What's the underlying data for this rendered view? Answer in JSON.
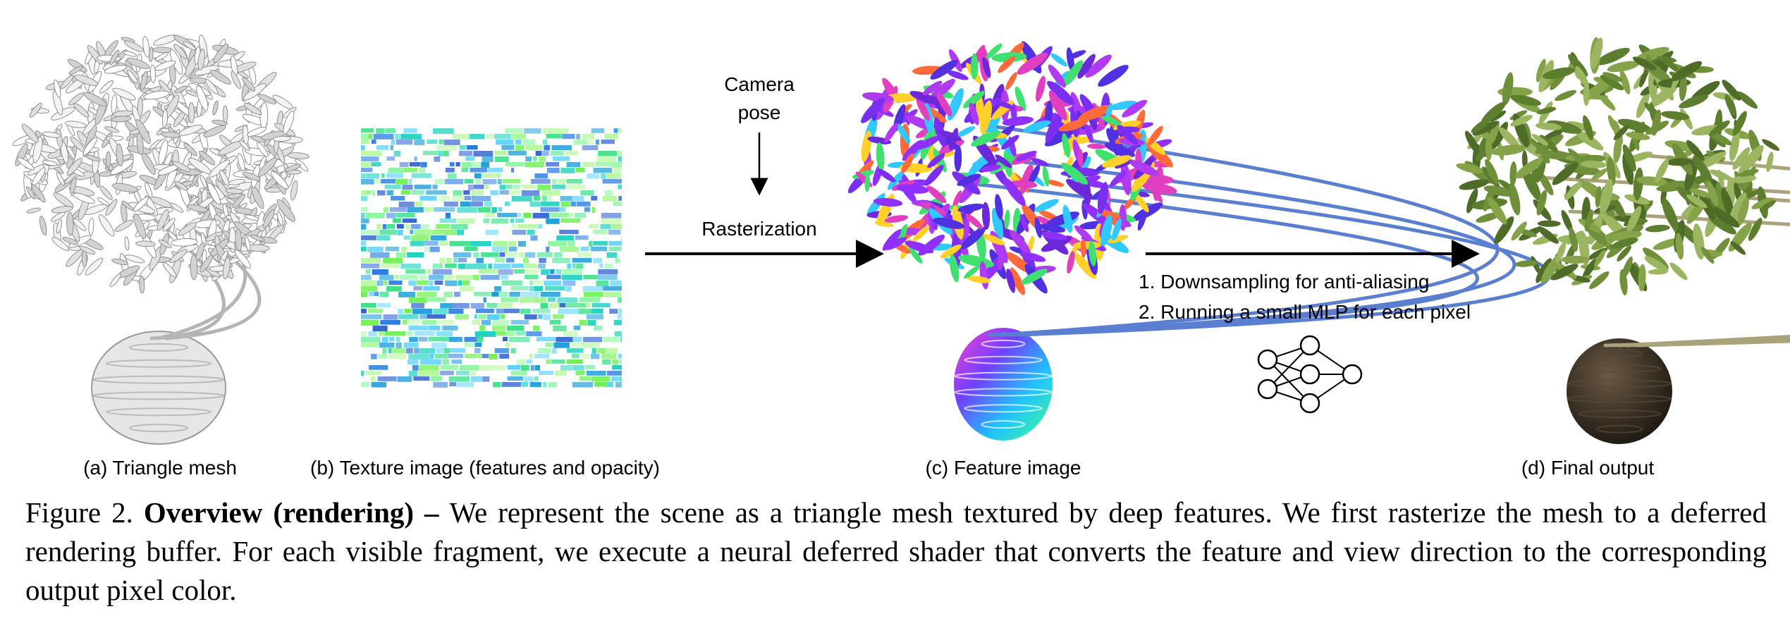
{
  "panels": {
    "a_label": "(a) Triangle mesh",
    "b_label": "(b) Texture image (features and opacity)",
    "c_label": "(c) Feature image",
    "d_label": "(d) Final output"
  },
  "annotations": {
    "camera_line1": "Camera",
    "camera_line2": "pose",
    "rasterization": "Rasterization",
    "step1": "1. Downsampling for anti-aliasing",
    "step2": "2. Running a small MLP for each pixel"
  },
  "icons": {
    "mlp": "neural-network-icon"
  },
  "caption": {
    "prefix": "Figure 2. ",
    "bold": "Overview (rendering) – ",
    "text": "We represent the scene as a triangle mesh textured by deep features. We first rasterize the mesh to a deferred rendering buffer. For each visible fragment, we execute a neural deferred shader that converts the feature and view direction to the corresponding output pixel color."
  }
}
